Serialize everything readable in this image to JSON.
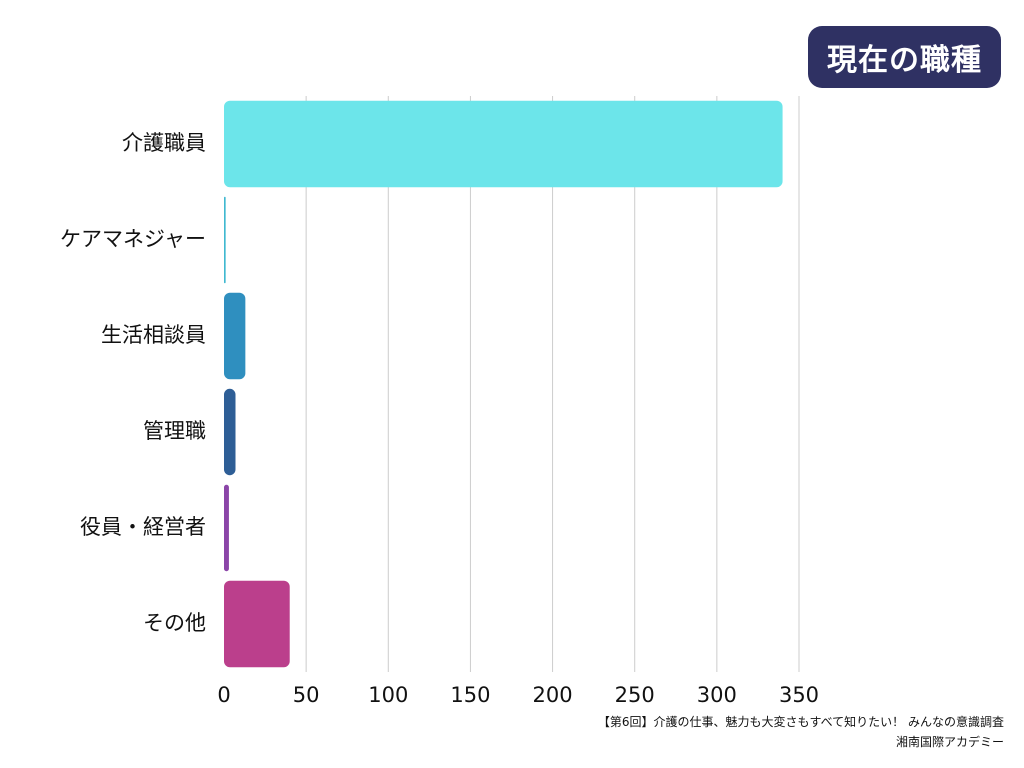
{
  "chart_data": {
    "type": "bar",
    "orientation": "horizontal",
    "title": "現在の職種",
    "categories": [
      "介護職員",
      "ケアマネジャー",
      "生活相談員",
      "管理職",
      "役員・経営者",
      "その他"
    ],
    "values": [
      340,
      1,
      13,
      7,
      3,
      40
    ],
    "colors": [
      "#6ce5ea",
      "#40b8d0",
      "#2f8fbf",
      "#2e5e96",
      "#8b45a8",
      "#bb3f8c"
    ],
    "xlim": [
      0,
      350
    ],
    "xticks": [
      0,
      50,
      100,
      150,
      200,
      250,
      300,
      350
    ],
    "grid": true
  },
  "footer": {
    "line1": "【第6回】介護の仕事、魅力も大変さもすべて知りたい！ みんなの意識調査",
    "line2": "湘南国際アカデミー"
  }
}
